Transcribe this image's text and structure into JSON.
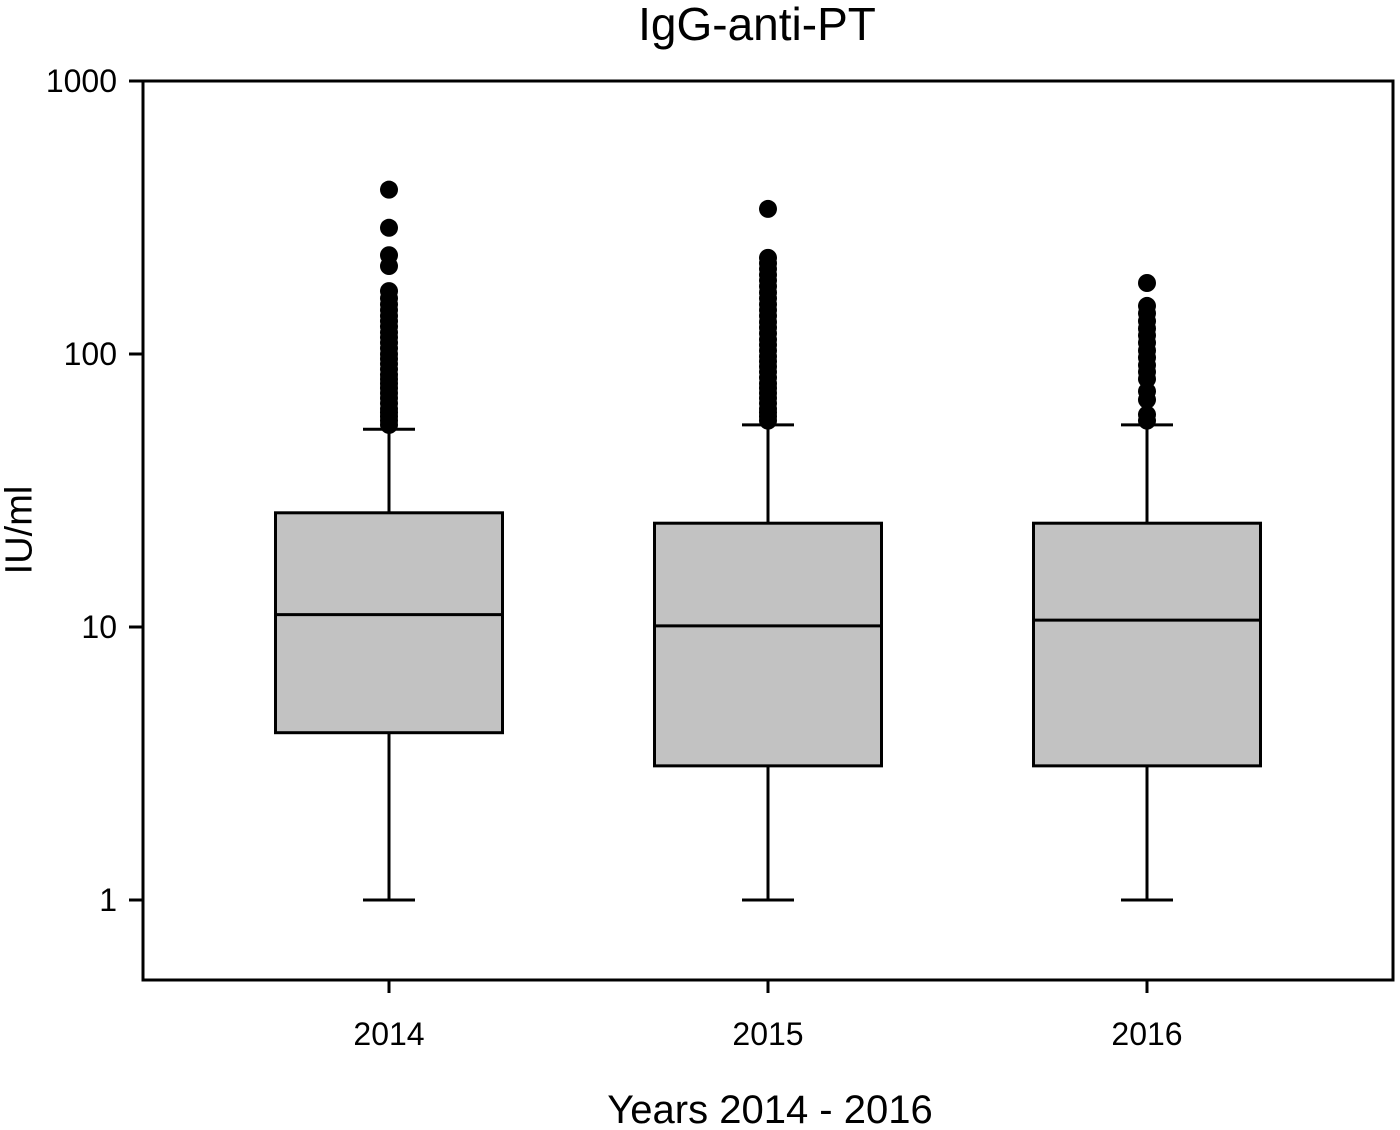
{
  "chart_data": {
    "type": "boxplot",
    "title": "IgG-anti-PT",
    "xlabel": "Years 2014 - 2016",
    "ylabel": "IU/ml",
    "yscale": "log",
    "ylim": [
      1,
      1000
    ],
    "grid": false,
    "legend": false,
    "yticks": [
      {
        "value": 1000,
        "label": "1000"
      },
      {
        "value": 100,
        "label": "100"
      },
      {
        "value": 10,
        "label": "10"
      },
      {
        "value": 1,
        "label": "1"
      }
    ],
    "categories": [
      "2014",
      "2015",
      "2016"
    ],
    "series": [
      {
        "category": "2014",
        "whisker_low": 1.0,
        "q1": 4.1,
        "median": 11.1,
        "q3": 26.2,
        "whisker_high": 53,
        "outliers": [
          400,
          290,
          230,
          210,
          170,
          160,
          152,
          145,
          138,
          132,
          126,
          120,
          115,
          110,
          105,
          100,
          96,
          92,
          88,
          84,
          81,
          78,
          75,
          72,
          69,
          66,
          63,
          61,
          59,
          57,
          55
        ]
      },
      {
        "category": "2015",
        "whisker_low": 1.0,
        "q1": 3.1,
        "median": 10.1,
        "q3": 24.0,
        "whisker_high": 55,
        "outliers": [
          340,
          225,
          215,
          205,
          195,
          186,
          177,
          168,
          160,
          152,
          145,
          138,
          131,
          125,
          119,
          113,
          108,
          103,
          98,
          94,
          90,
          86,
          82,
          78,
          75,
          72,
          69,
          66,
          63,
          61,
          59,
          57
        ]
      },
      {
        "category": "2016",
        "whisker_low": 1.0,
        "q1": 3.1,
        "median": 10.6,
        "q3": 24.0,
        "whisker_high": 55,
        "outliers": [
          182,
          150,
          141,
          132,
          124,
          117,
          110,
          103,
          97,
          91,
          86,
          81,
          73,
          68,
          60,
          57
        ]
      }
    ],
    "colors": {
      "box_fill": "#c2c2c2",
      "line": "#000000",
      "background": "#ffffff"
    }
  }
}
